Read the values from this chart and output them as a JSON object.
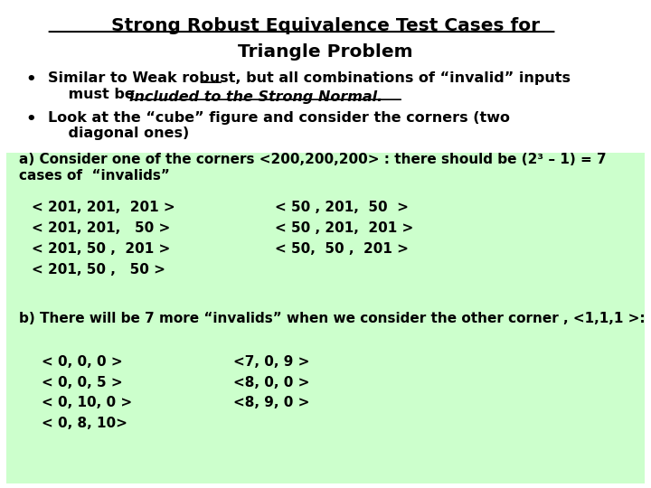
{
  "title_line1": "Strong Robust Equivalence Test Cases for",
  "title_line2": "Triangle Problem",
  "green_bg_color": "#ccffcc",
  "white_bg_color": "#ffffff",
  "section_a_header": "a) Consider one of the corners <200,200,200> : there should be (2³ – 1) = 7\ncases of  “invalids”",
  "section_a_col1": "< 201, 201,  201 >\n< 201, 201,   50 >\n< 201, 50 ,  201 >\n< 201, 50 ,   50 >",
  "section_a_col2": "< 50 , 201,  50  >\n< 50 , 201,  201 >\n< 50,  50 ,  201 >",
  "section_b_header": "b) There will be 7 more “invalids” when we consider the other corner , <1,1,1 >:",
  "section_b_col1": "< 0, 0, 0 >\n< 0, 0, 5 >\n< 0, 10, 0 >\n< 0, 8, 10>",
  "section_b_col2": "<7, 0, 9 >\n<8, 0, 0 >\n<8, 9, 0 >"
}
